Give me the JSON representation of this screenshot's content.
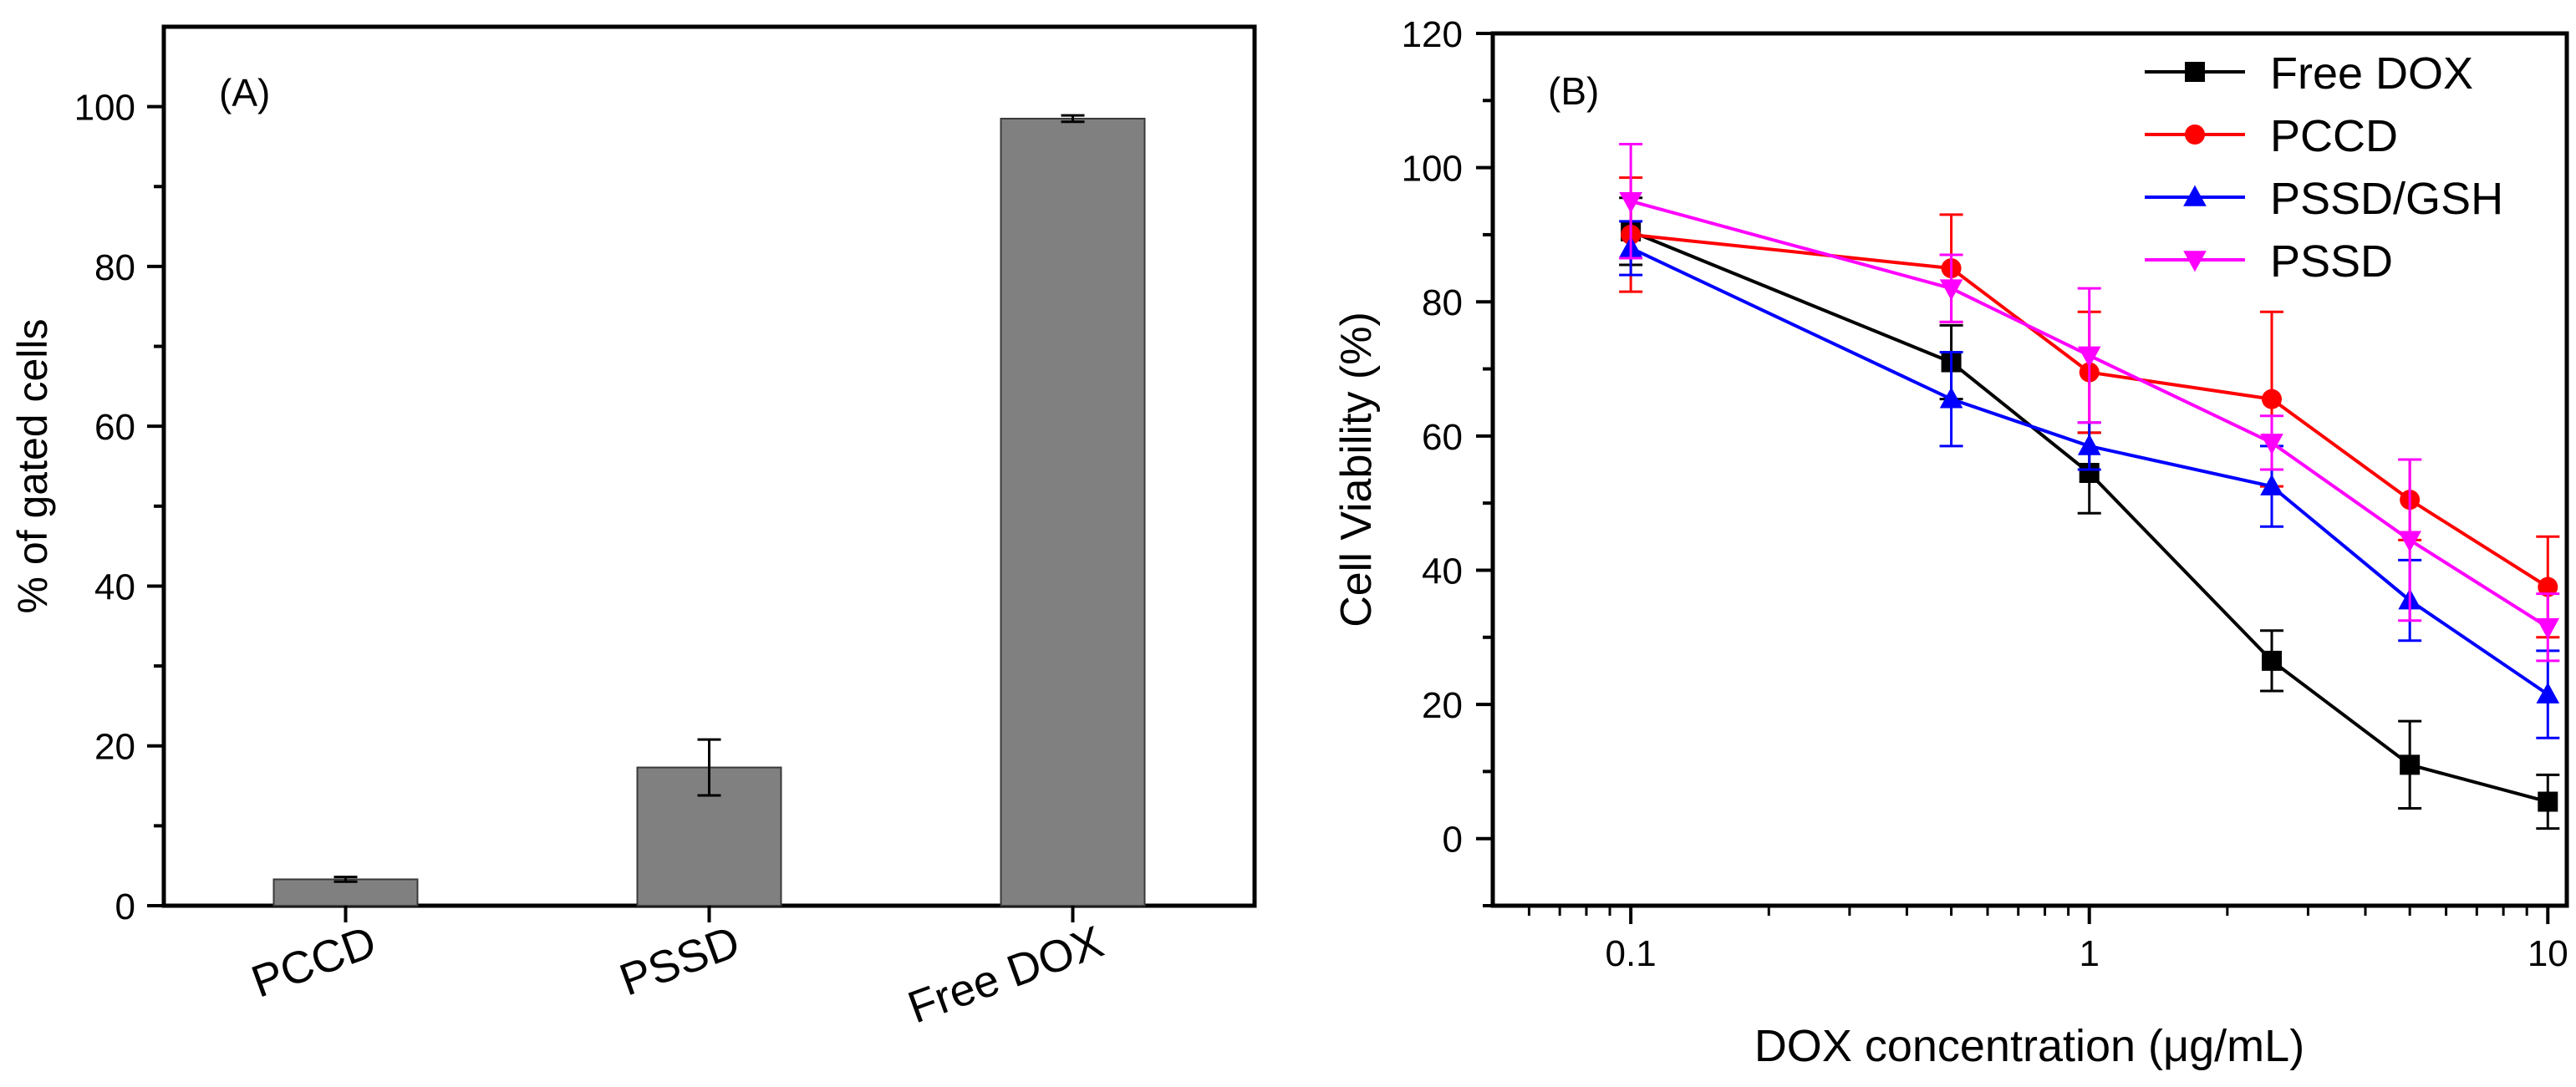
{
  "chart_data": [
    {
      "id": "A",
      "type": "bar",
      "panel_label": "(A)",
      "title": "",
      "xlabel": "",
      "ylabel": "% of gated cells",
      "categories": [
        "PCCD",
        "PSSD",
        "Free DOX"
      ],
      "values": [
        3.3,
        17.3,
        98.5
      ],
      "errors": [
        0.3,
        3.5,
        0.4
      ],
      "ylim": [
        0,
        110
      ],
      "yticks": [
        0,
        20,
        40,
        60,
        80,
        100
      ],
      "ytick_labels": [
        "0",
        "20",
        "40",
        "60",
        "80",
        "100"
      ],
      "bar_color": "#808080",
      "grid": false
    },
    {
      "id": "B",
      "type": "line",
      "panel_label": "(B)",
      "title": "",
      "xlabel": "DOX concentration (μg/mL)",
      "ylabel": "Cell Viability (%)",
      "xscale": "log",
      "xlim": [
        0.05,
        11
      ],
      "ylim": [
        -10,
        120
      ],
      "x": [
        0.1,
        0.5,
        1,
        2.5,
        5,
        10
      ],
      "xticks": [
        0.1,
        1,
        10
      ],
      "xtick_labels": [
        "0.1",
        "1",
        "10"
      ],
      "yticks": [
        0,
        20,
        40,
        60,
        80,
        100,
        120
      ],
      "ytick_labels": [
        "0",
        "20",
        "40",
        "60",
        "80",
        "100",
        "120"
      ],
      "legend_position": "top-right",
      "grid": false,
      "series": [
        {
          "name": "Free DOX",
          "color": "#000000",
          "marker": "square",
          "values": [
            90.5,
            71,
            54.5,
            26.5,
            11,
            5.5
          ],
          "errors": [
            5,
            5.5,
            6,
            4.5,
            6.5,
            4
          ]
        },
        {
          "name": "PCCD",
          "color": "#ff0000",
          "marker": "circle",
          "values": [
            90,
            85,
            69.5,
            65.5,
            50.5,
            37.5
          ],
          "errors": [
            8.5,
            8,
            9,
            13,
            6,
            7.5
          ]
        },
        {
          "name": "PSSD/GSH",
          "color": "#0000ff",
          "marker": "triangle-up",
          "values": [
            88,
            65.5,
            58.5,
            52.5,
            35.5,
            21.5
          ],
          "errors": [
            4,
            7,
            3.5,
            6,
            6,
            6.5
          ]
        },
        {
          "name": "PSSD",
          "color": "#ff00ff",
          "marker": "triangle-down",
          "values": [
            95,
            82,
            72,
            59,
            44.5,
            31.5
          ],
          "errors": [
            8.5,
            5,
            10,
            4,
            12,
            5
          ]
        }
      ]
    }
  ]
}
